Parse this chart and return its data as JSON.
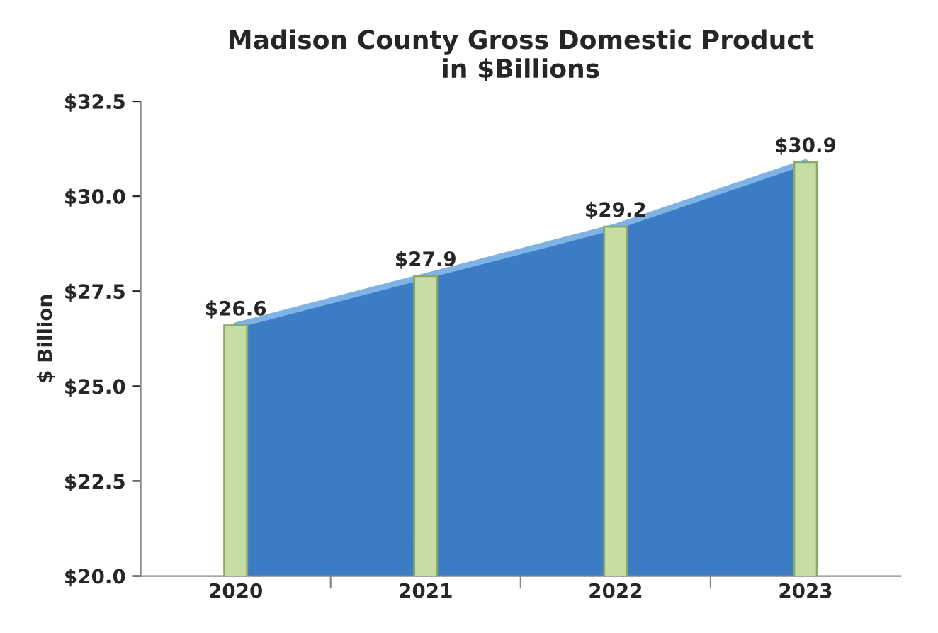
{
  "chart_data": {
    "type": "bar",
    "title": "Madison County Gross Domestic Product\nin $Billions",
    "ylabel": "$ Billion",
    "categories": [
      "2020",
      "2021",
      "2022",
      "2023"
    ],
    "series": [
      {
        "type": "area",
        "color": "#3b7cc4",
        "values": [
          26.6,
          27.9,
          29.2,
          30.9
        ]
      },
      {
        "color": "#c6dda4",
        "values": [
          26.6,
          27.9,
          29.2,
          30.9
        ]
      }
    ],
    "ylim": [
      20,
      32.5
    ],
    "yticks": [
      {
        "value": 20,
        "label": "$20.0"
      },
      {
        "value": 22.5,
        "label": "$22.5"
      },
      {
        "value": 25,
        "label": "$25.0"
      },
      {
        "value": 27.5,
        "label": "$27.5"
      },
      {
        "value": 30,
        "label": "$30.0"
      },
      {
        "value": 32.5,
        "label": "$32.5"
      }
    ],
    "value_labels": [
      "$26.6",
      "$27.9",
      "$29.2",
      "$30.9"
    ],
    "grid": false,
    "legend": false
  }
}
